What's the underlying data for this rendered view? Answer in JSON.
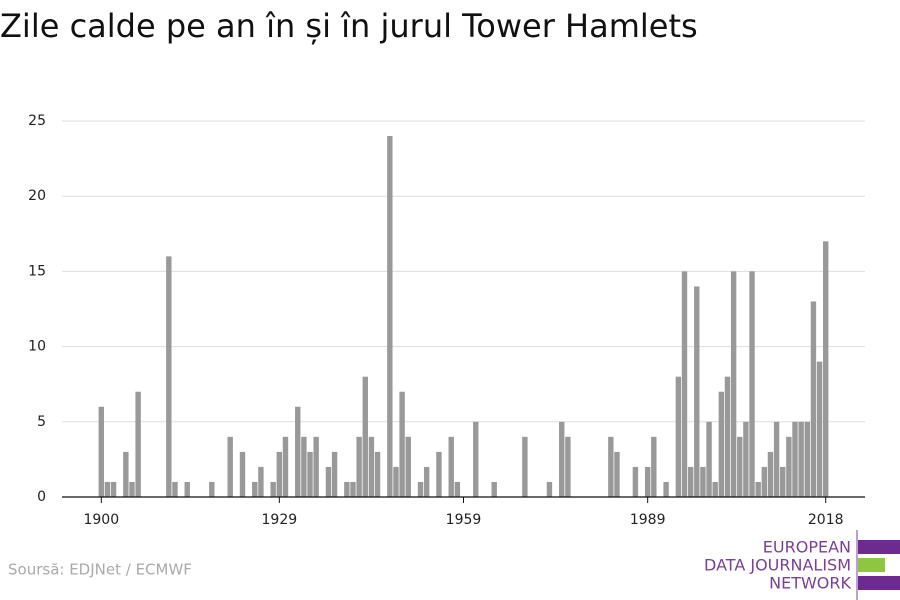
{
  "chart_data": {
    "type": "bar",
    "title": "Zile calde pe an în și în jurul Tower Hamlets",
    "x": [
      1900,
      1901,
      1902,
      1903,
      1904,
      1905,
      1906,
      1907,
      1908,
      1909,
      1910,
      1911,
      1912,
      1913,
      1914,
      1915,
      1916,
      1917,
      1918,
      1919,
      1920,
      1921,
      1922,
      1923,
      1924,
      1925,
      1926,
      1927,
      1928,
      1929,
      1930,
      1931,
      1932,
      1933,
      1934,
      1935,
      1936,
      1937,
      1938,
      1939,
      1940,
      1941,
      1942,
      1943,
      1944,
      1945,
      1946,
      1947,
      1948,
      1949,
      1950,
      1951,
      1952,
      1953,
      1954,
      1955,
      1956,
      1957,
      1958,
      1959,
      1960,
      1961,
      1962,
      1963,
      1964,
      1965,
      1966,
      1967,
      1968,
      1969,
      1970,
      1971,
      1972,
      1973,
      1974,
      1975,
      1976,
      1977,
      1978,
      1979,
      1980,
      1981,
      1982,
      1983,
      1984,
      1985,
      1986,
      1987,
      1988,
      1989,
      1990,
      1991,
      1992,
      1993,
      1994,
      1995,
      1996,
      1997,
      1998,
      1999,
      2000,
      2001,
      2002,
      2003,
      2004,
      2005,
      2006,
      2007,
      2008,
      2009,
      2010,
      2011,
      2012,
      2013,
      2014,
      2015,
      2016,
      2017,
      2018
    ],
    "values": [
      6,
      1,
      1,
      0,
      3,
      1,
      7,
      0,
      0,
      0,
      0,
      16,
      1,
      0,
      1,
      0,
      0,
      0,
      1,
      0,
      0,
      4,
      0,
      3,
      0,
      1,
      2,
      0,
      1,
      3,
      4,
      0,
      6,
      4,
      3,
      4,
      0,
      2,
      3,
      0,
      1,
      1,
      4,
      8,
      4,
      3,
      0,
      24,
      2,
      7,
      4,
      0,
      1,
      2,
      0,
      3,
      0,
      4,
      1,
      0,
      0,
      5,
      0,
      0,
      1,
      0,
      0,
      0,
      0,
      4,
      0,
      0,
      0,
      1,
      0,
      5,
      4,
      0,
      0,
      0,
      0,
      0,
      0,
      4,
      3,
      0,
      0,
      2,
      0,
      2,
      4,
      0,
      1,
      0,
      8,
      15,
      2,
      14,
      2,
      5,
      1,
      7,
      8,
      15,
      4,
      5,
      15,
      1,
      2,
      3,
      5,
      2,
      4,
      5,
      5,
      5,
      13,
      9,
      17
    ],
    "color": "#999999",
    "xlim": [
      1893.6,
      2024.4
    ],
    "xticks": [
      1900,
      1929,
      1959,
      1989,
      2018
    ],
    "ylim": [
      0,
      25
    ],
    "yticks": [
      0,
      5,
      10,
      15,
      20,
      25
    ],
    "grid": true,
    "source": "Soursă: EDJNet / ECMWF",
    "logo": [
      "EUROPEAN",
      "DATA JOURNALISM",
      "NETWORK"
    ]
  }
}
